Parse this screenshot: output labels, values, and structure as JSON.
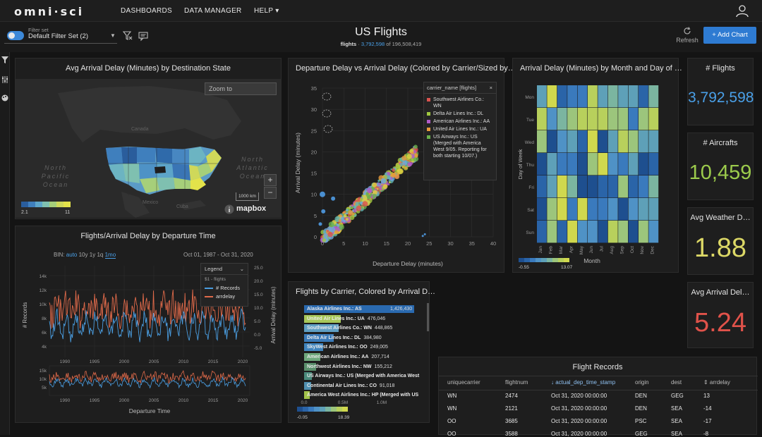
{
  "nav": {
    "logo": "omni·sci",
    "items": [
      "DASHBOARDS",
      "DATA MANAGER",
      "HELP ▾"
    ]
  },
  "filter": {
    "caption": "Filter set",
    "value": "Default Filter Set (2)"
  },
  "header": {
    "title": "US Flights",
    "subtitle_table": "flights",
    "subtitle_sep": " · ",
    "subtitle_count": "3,792,598",
    "subtitle_of": " of 196,508,419",
    "refresh_label": "Refresh",
    "add_chart_label": "+  Add Chart"
  },
  "map_card": {
    "title": "Avg Arrival Delay (Minutes) by Destination State",
    "zoom_placeholder": "Zoom to",
    "zoom_in": "+",
    "zoom_out": "−",
    "scale_label": "1000 km",
    "attribution": "mapbox",
    "labels": [
      "North Pacific Ocean",
      "North Atlantic Ocean",
      "Canada",
      "Mexico",
      "Cuba"
    ],
    "legend_min": "2.1",
    "legend_max": "11",
    "legend_colors": [
      "#2a5d9c",
      "#3f7fbd",
      "#5da5c9",
      "#7fc0b0",
      "#a6cf7a",
      "#cfd85a",
      "#e3e24a"
    ]
  },
  "scatter_card": {
    "title": "Departure Delay vs Arrival Delay (Colored by Carrier/Sized by…",
    "xlabel": "Departure Delay (minutes)",
    "ylabel": "Arrival Delay (minutes)",
    "x_ticks": [
      "0",
      "5",
      "10",
      "15",
      "20",
      "25",
      "30",
      "35",
      "40"
    ],
    "y_ticks": [
      "0",
      "5",
      "10",
      "15",
      "20",
      "25",
      "30",
      "35"
    ],
    "legend_title": "carrier_name [flights]",
    "legend_close": "×",
    "legend_items": [
      {
        "label": "Southwest Airlines Co.: WN",
        "color": "#d9534f"
      },
      {
        "label": "Delta Air Lines Inc.: DL",
        "color": "#a0c840"
      },
      {
        "label": "American Airlines Inc.: AA",
        "color": "#b05ac8"
      },
      {
        "label": "United Air Lines Inc.: UA",
        "color": "#e89a3c"
      },
      {
        "label": "US Airways Inc.: US (Merged with America West 9/05. Reporting for both starting 10/07.)",
        "color": "#6ab04c"
      }
    ]
  },
  "heatmap_card": {
    "title": "Arrival Delay (Minutes) by Month and Day of …",
    "xlabel": "Month",
    "ylabel": "Day of Week",
    "days": [
      "Mon",
      "Tue",
      "Wed",
      "Thu",
      "Fri",
      "Sat",
      "Sun"
    ],
    "months": [
      "Jan",
      "Feb",
      "Mar",
      "Apr",
      "May",
      "Jun",
      "Jul",
      "Aug",
      "Sep",
      "Oct",
      "Nov",
      "Dec"
    ],
    "legend_min": "-0.55",
    "legend_max": "13.07"
  },
  "kpis": [
    {
      "title": "# Flights",
      "value": "3,792,598",
      "color": "#4aa0e8"
    },
    {
      "title": "# Aircrafts",
      "value": "10,459",
      "color": "#9ccb4c"
    },
    {
      "title": "Avg Weather D…",
      "value": "1.88",
      "color": "#dcd866"
    },
    {
      "title": "Avg Arrival Del…",
      "value": "5.24",
      "color": "#e0524a"
    }
  ],
  "timeline_card": {
    "title": "Flights/Arrival Delay by Departure Time",
    "bin_label": "BIN:",
    "bins": [
      "auto",
      "10y",
      "1y",
      "1q",
      "1mo"
    ],
    "range": "Oct 01, 1987 - Oct 31, 2020",
    "left_axis": "# Records",
    "right_axis": "Arrival Delay (minutes)",
    "xlabel": "Departure Time",
    "legend_label": "Legend",
    "legend_group": "$1 - flights",
    "legend_items": [
      {
        "label": "# Records",
        "color": "#4a9de0"
      },
      {
        "label": "arrdelay",
        "color": "#e06a4a"
      }
    ],
    "x_ticks": [
      "1990",
      "1995",
      "2000",
      "2005",
      "2010",
      "2015",
      "2020"
    ],
    "y_left": [
      "14k",
      "12k",
      "10k",
      "8k",
      "6k",
      "4k"
    ],
    "y_right": [
      "25.0",
      "20.0",
      "15.0",
      "10.0",
      "5.0",
      "0.0",
      "-5.0"
    ],
    "mini_y": [
      "15k",
      "10k",
      "5k"
    ]
  },
  "bars_card": {
    "title": "Flights by Carrier, Colored by Arrival D…",
    "rows": [
      {
        "label": "Alaska Airlines Inc.: AS",
        "value": "1,426,430",
        "fraction": 1.0,
        "color": "#2a6ab0"
      },
      {
        "label": "United Air Lines Inc.: UA",
        "value": "476,046",
        "fraction": 0.334,
        "color": "#a7c85a"
      },
      {
        "label": "Southwest Airlines Co.: WN",
        "value": "448,865",
        "fraction": 0.315,
        "color": "#5f9fc4"
      },
      {
        "label": "Delta Air Lines Inc.: DL",
        "value": "384,980",
        "fraction": 0.27,
        "color": "#3a7ab8"
      },
      {
        "label": "SkyWest Airlines Inc.: OO",
        "value": "249,005",
        "fraction": 0.175,
        "color": "#3f84bd"
      },
      {
        "label": "American Airlines Inc.: AA",
        "value": "207,714",
        "fraction": 0.146,
        "color": "#6ea87c"
      },
      {
        "label": "Northwest Airlines Inc.: NW",
        "value": "155,212",
        "fraction": 0.109,
        "color": "#5a8f6c"
      },
      {
        "label": "US Airways Inc.: US (Merged with America West",
        "value": "",
        "fraction": 0.07,
        "color": "#4a8a7c"
      },
      {
        "label": "Continental Air Lines Inc.: CO",
        "value": "91,018",
        "fraction": 0.064,
        "color": "#4f8fb0"
      },
      {
        "label": "America West Airlines Inc.: HP (Merged with US",
        "value": "",
        "fraction": 0.05,
        "color": "#a4c44a"
      }
    ],
    "axis_ticks": [
      "0.0",
      "0.5M",
      "1.0M"
    ],
    "legend_min": "-0.05",
    "legend_max": "18.39"
  },
  "table_card": {
    "title": "Flight Records",
    "columns": [
      "uniquecarrier",
      "flightnum",
      "↓ actual_dep_time_stamp",
      "origin",
      "dest",
      "⇕ arrdelay"
    ],
    "rows": [
      [
        "WN",
        "2474",
        "Oct 31, 2020  00:00:00",
        "DEN",
        "GEG",
        "13"
      ],
      [
        "WN",
        "2121",
        "Oct 31, 2020  00:00:00",
        "DEN",
        "SEA",
        "-14"
      ],
      [
        "OO",
        "3685",
        "Oct 31, 2020  00:00:00",
        "PSC",
        "SEA",
        "-17"
      ],
      [
        "OO",
        "3588",
        "Oct 31, 2020  00:00:00",
        "GEG",
        "SEA",
        "-8"
      ]
    ]
  }
}
